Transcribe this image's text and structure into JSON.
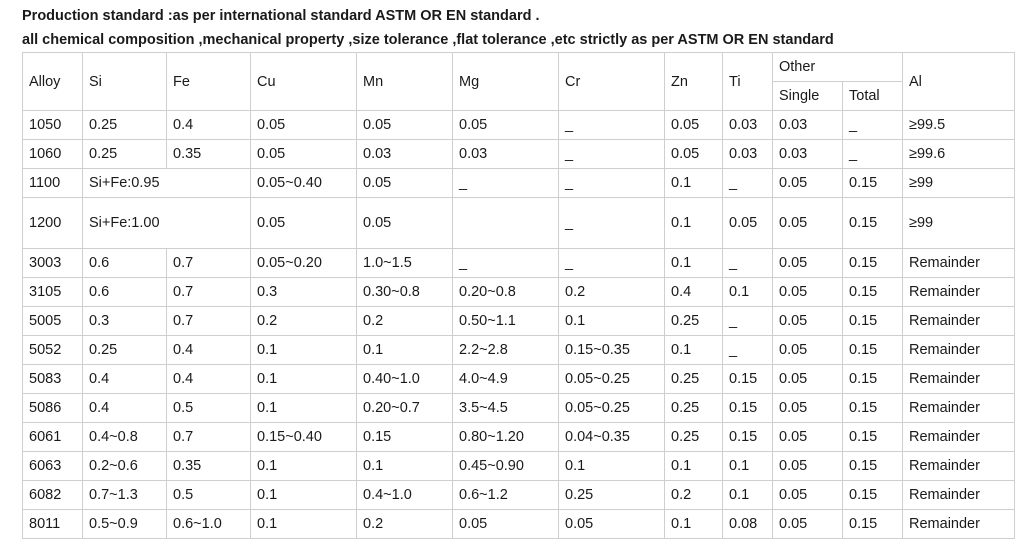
{
  "intro": {
    "line1": "Production standard :as per international standard ASTM OR EN standard .",
    "line2": "all chemical composition ,mechanical property ,size tolerance ,flat tolerance ,etc strictly as per ASTM OR EN standard"
  },
  "table": {
    "headers": {
      "alloy": "Alloy",
      "si": "Si",
      "fe": "Fe",
      "cu": "Cu",
      "mn": "Mn",
      "mg": "Mg",
      "cr": "Cr",
      "zn": "Zn",
      "ti": "Ti",
      "other": "Other",
      "single": "Single",
      "total": "Total",
      "al": "Al"
    },
    "rows": [
      [
        "1050",
        "0.25",
        "0.4",
        "0.05",
        "0.05",
        "0.05",
        "_",
        "0.05",
        "0.03",
        "0.03",
        "_",
        "≥99.5"
      ],
      [
        "1060",
        "0.25",
        "0.35",
        "0.05",
        "0.03",
        "0.03",
        "_",
        "0.05",
        "0.03",
        "0.03",
        "_",
        "≥99.6"
      ],
      [
        "1100",
        "Si+Fe:0.95",
        "0.05~0.40",
        "0.05",
        "_",
        "_",
        "0.1",
        "_",
        "0.05",
        "0.15",
        "≥99"
      ],
      [
        "1200",
        "Si+Fe:1.00",
        "0.05",
        "0.05",
        "",
        "_",
        "0.1",
        "0.05",
        "0.05",
        "0.15",
        "≥99"
      ],
      [
        "3003",
        "0.6",
        "0.7",
        "0.05~0.20",
        "1.0~1.5",
        "_",
        "_",
        "0.1",
        "_",
        "0.05",
        "0.15",
        "Remainder"
      ],
      [
        "3105",
        "0.6",
        "0.7",
        "0.3",
        "0.30~0.8",
        "0.20~0.8",
        "0.2",
        "0.4",
        "0.1",
        "0.05",
        "0.15",
        "Remainder"
      ],
      [
        "5005",
        "0.3",
        "0.7",
        "0.2",
        "0.2",
        "0.50~1.1",
        "0.1",
        "0.25",
        "_",
        "0.05",
        "0.15",
        "Remainder"
      ],
      [
        "5052",
        "0.25",
        "0.4",
        "0.1",
        "0.1",
        "2.2~2.8",
        "0.15~0.35",
        "0.1",
        "_",
        "0.05",
        "0.15",
        "Remainder"
      ],
      [
        "5083",
        "0.4",
        "0.4",
        "0.1",
        "0.40~1.0",
        "4.0~4.9",
        "0.05~0.25",
        "0.25",
        "0.15",
        "0.05",
        "0.15",
        "Remainder"
      ],
      [
        "5086",
        "0.4",
        "0.5",
        "0.1",
        "0.20~0.7",
        "3.5~4.5",
        "0.05~0.25",
        "0.25",
        "0.15",
        "0.05",
        "0.15",
        "Remainder"
      ],
      [
        "6061",
        "0.4~0.8",
        "0.7",
        "0.15~0.40",
        "0.15",
        "0.80~1.20",
        "0.04~0.35",
        "0.25",
        "0.15",
        "0.05",
        "0.15",
        "Remainder"
      ],
      [
        "6063",
        "0.2~0.6",
        "0.35",
        "0.1",
        "0.1",
        "0.45~0.90",
        "0.1",
        "0.1",
        "0.1",
        "0.05",
        "0.15",
        "Remainder"
      ],
      [
        "6082",
        "0.7~1.3",
        "0.5",
        "0.1",
        "0.4~1.0",
        "0.6~1.2",
        "0.25",
        "0.2",
        "0.1",
        "0.05",
        "0.15",
        "Remainder"
      ],
      [
        "8011",
        "0.5~0.9",
        "0.6~1.0",
        "0.1",
        "0.2",
        "0.05",
        "0.05",
        "0.1",
        "0.08",
        "0.05",
        "0.15",
        "Remainder"
      ]
    ]
  }
}
